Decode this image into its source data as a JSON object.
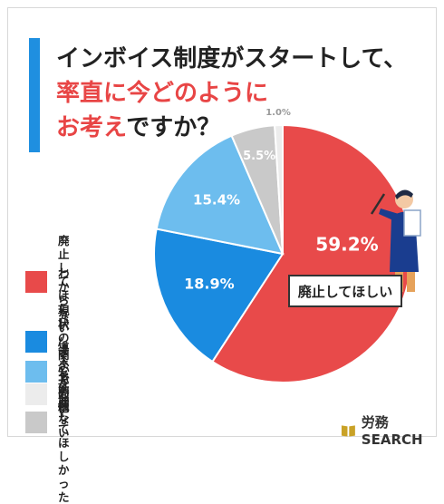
{
  "title": {
    "line1": "インボイス制度がスタートして、",
    "line2_red": "率直に今どのように",
    "line3_red": "お考え",
    "line3_rest": "ですか？"
  },
  "chart_data": {
    "type": "pie",
    "title": "インボイス制度がスタートして、率直に今どのようにお考えですか？",
    "slices": [
      {
        "label": "廃止してほしい",
        "value": 59.2,
        "display": "59.2%",
        "color": "#e84a4a"
      },
      {
        "label": "わからない\n/ 関心がない",
        "value": 18.9,
        "display": "18.9%",
        "color": "#1a8be0"
      },
      {
        "label": "現状のままで\n問題ない",
        "value": 15.4,
        "display": "15.4%",
        "color": "#6dbdee"
      },
      {
        "label": "導入を延期して\nほしかった",
        "value": 5.5,
        "display": "5.5%",
        "color": "#c9c9c9"
      },
      {
        "label": "その他",
        "value": 1.0,
        "display": "1.0%",
        "color": "#ececec"
      }
    ],
    "start": "clockwise from top",
    "legend_position": "left"
  },
  "callout": {
    "text": "廃止してほしい"
  },
  "logo": {
    "text": "労務SEARCH",
    "icon": "book-icon",
    "color": "#c9a227"
  }
}
